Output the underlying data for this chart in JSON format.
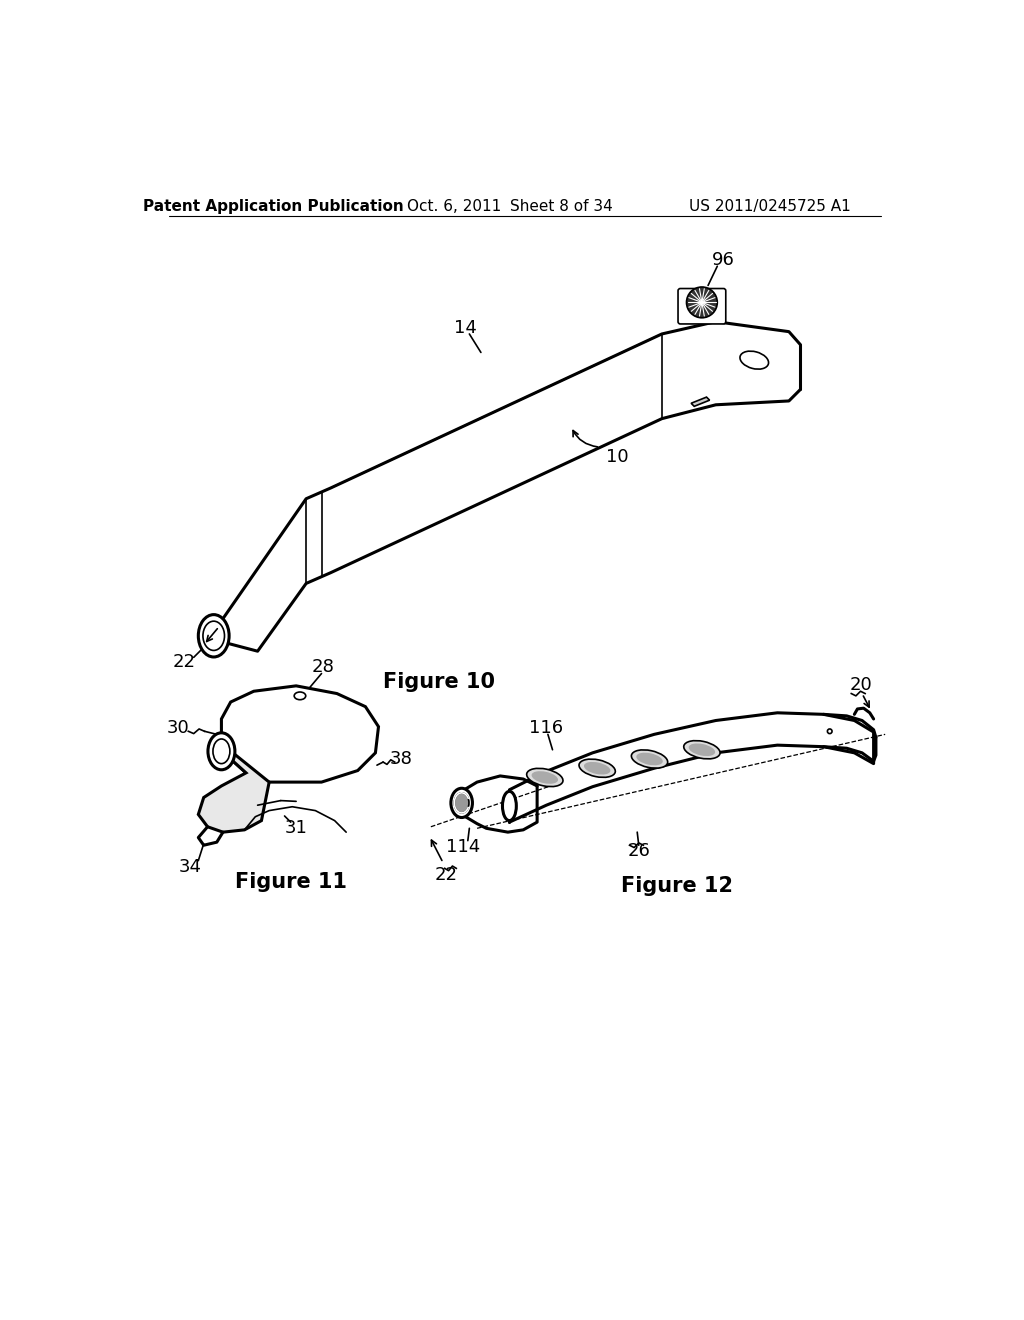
{
  "background_color": "#ffffff",
  "header": {
    "left": "Patent Application Publication",
    "center_date": "Oct. 6, 2011",
    "center_sheet": "Sheet 8 of 34",
    "right": "US 2011/0245725 A1",
    "fontsize": 11
  },
  "fig10_caption": "Figure 10",
  "fig11_caption": "Figure 11",
  "fig12_caption": "Figure 12",
  "line_color": "#000000",
  "label_fontsize": 13,
  "caption_fontsize": 15
}
